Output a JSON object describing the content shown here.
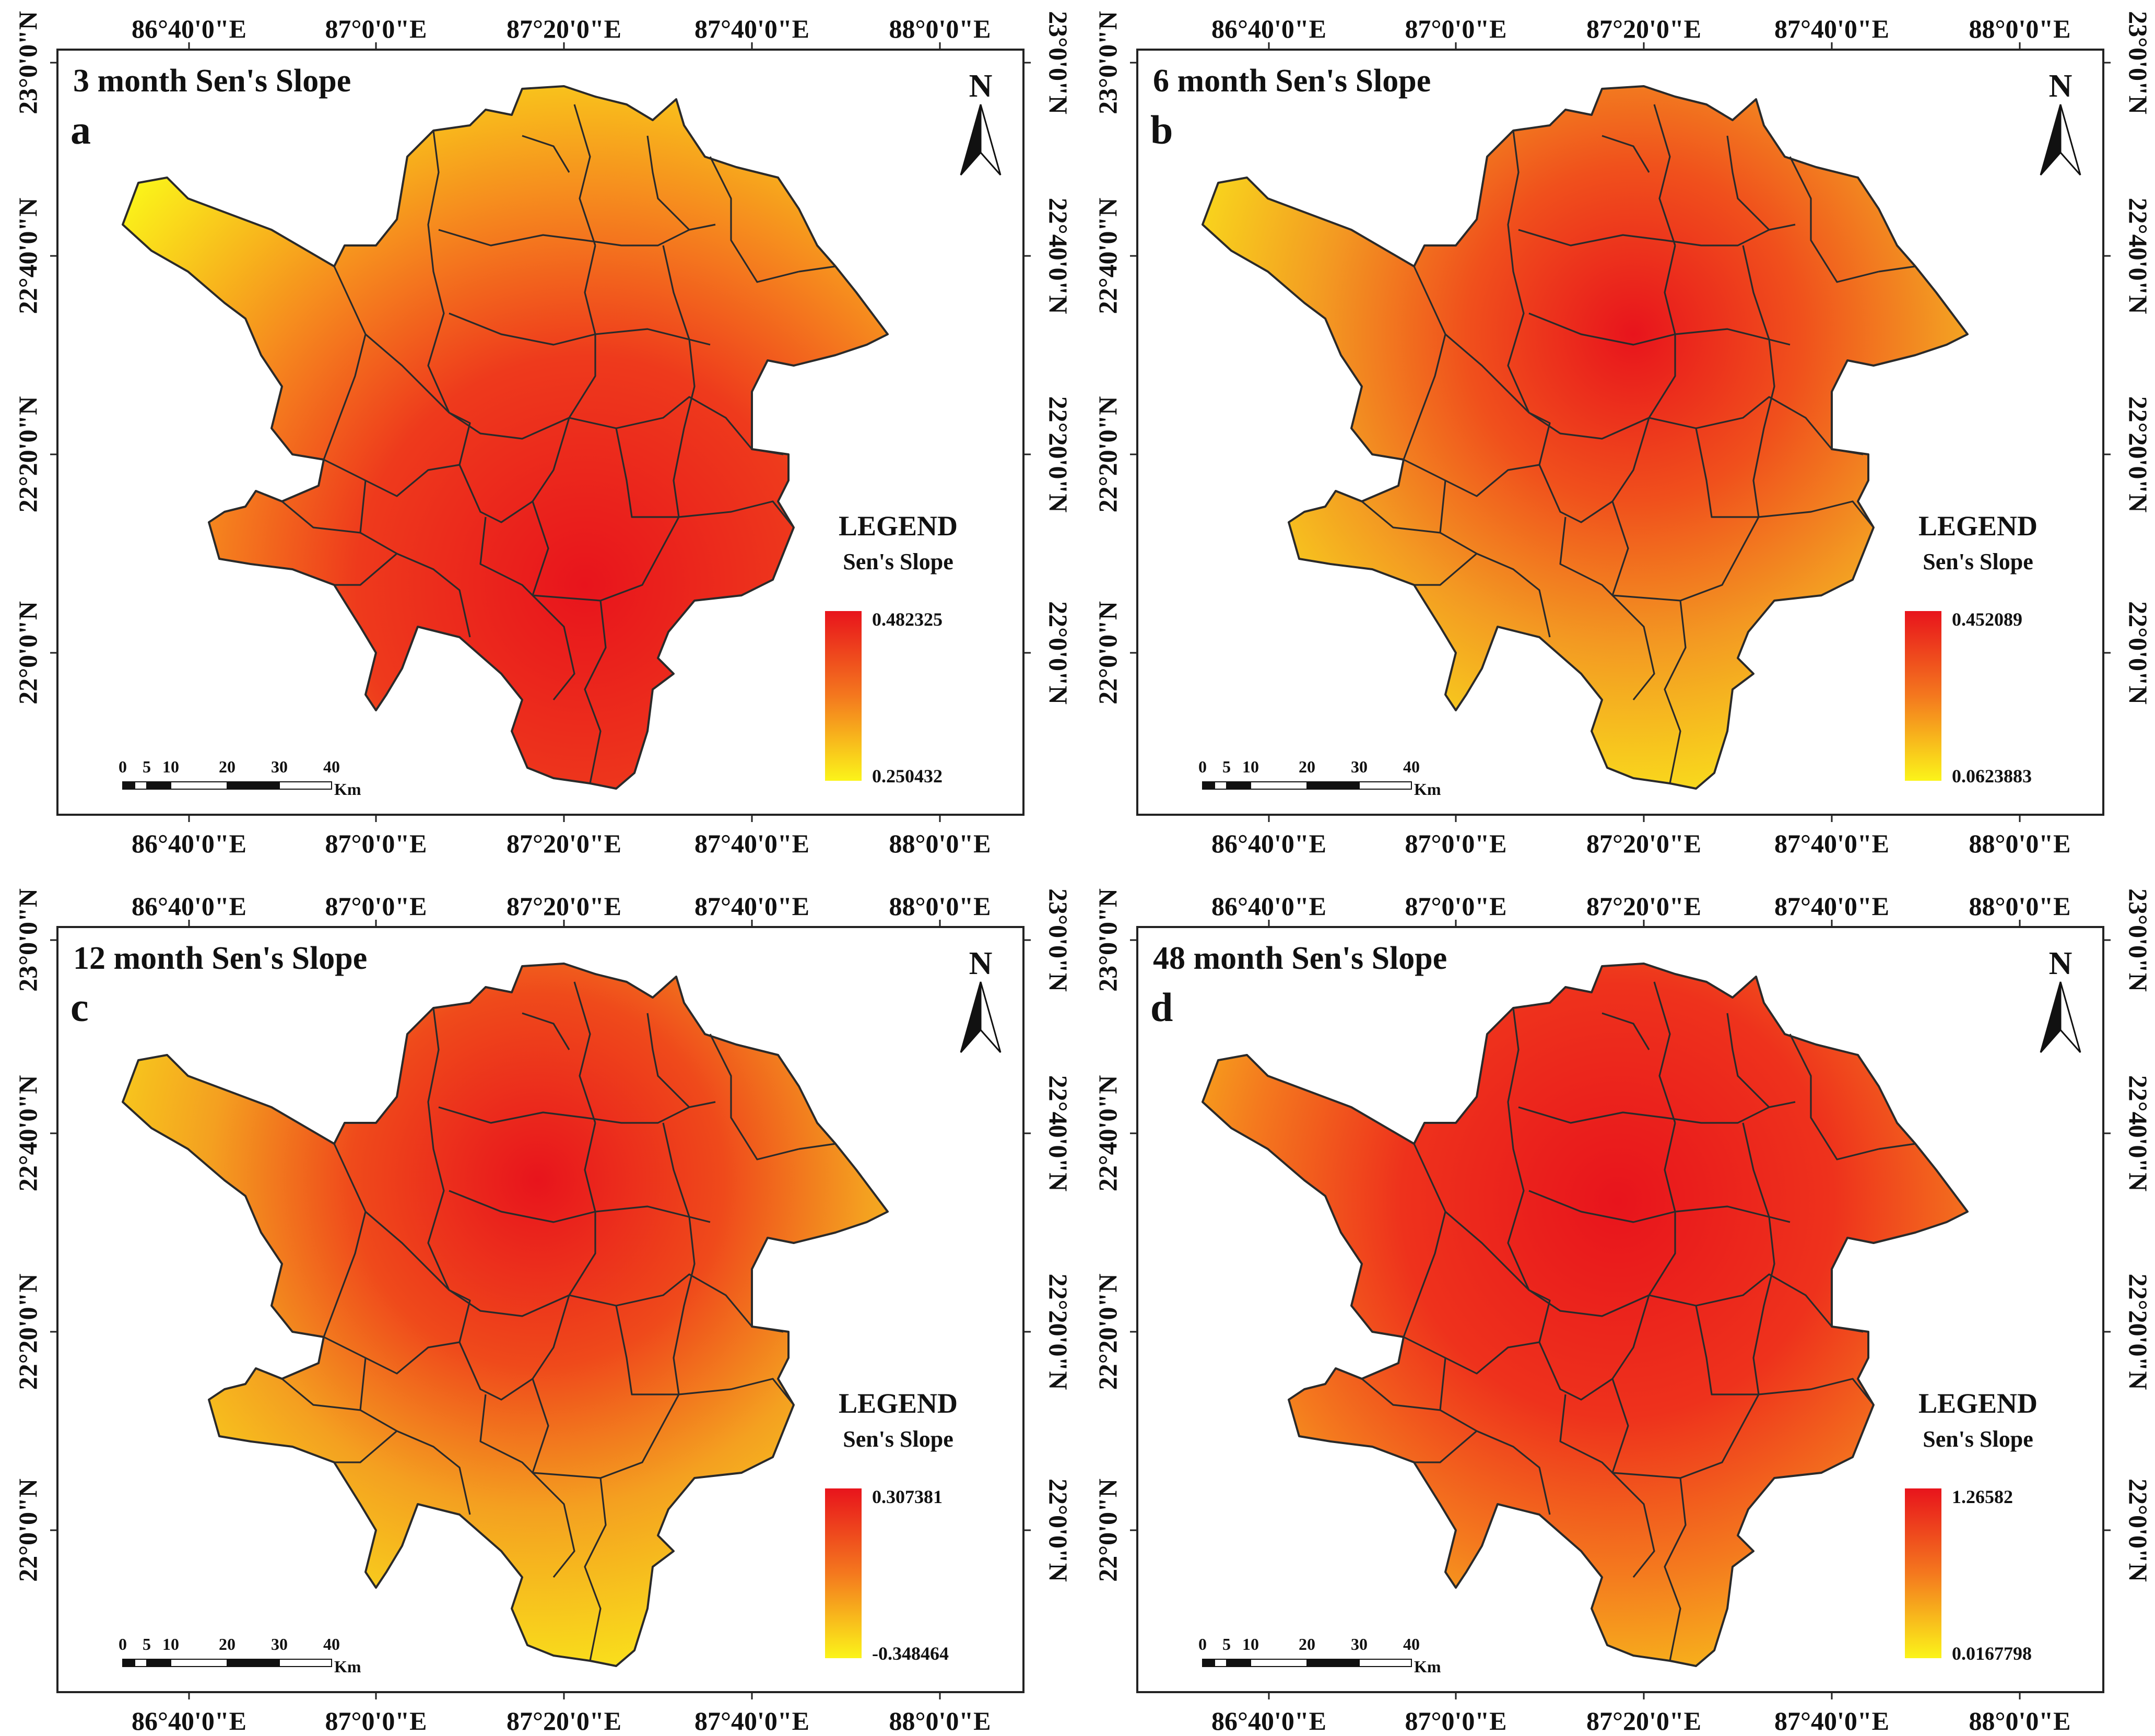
{
  "panels": [
    {
      "title": "3 month Sen's Slope",
      "letter": "a",
      "legend": {
        "heading": "LEGEND",
        "subheading": "Sen's Slope",
        "max_label": "0.482325",
        "min_label": "0.250432"
      }
    },
    {
      "title": "6 month Sen's Slope",
      "letter": "b",
      "legend": {
        "heading": "LEGEND",
        "subheading": "Sen's Slope",
        "max_label": "0.452089",
        "min_label": "0.0623883"
      }
    },
    {
      "title": "12 month Sen's Slope",
      "letter": "c",
      "legend": {
        "heading": "LEGEND",
        "subheading": "Sen's Slope",
        "max_label": "0.307381",
        "min_label": "-0.348464"
      }
    },
    {
      "title": "48 month Sen's Slope",
      "letter": "d",
      "legend": {
        "heading": "LEGEND",
        "subheading": "Sen's Slope",
        "max_label": "1.26582",
        "min_label": "0.0167798"
      }
    }
  ],
  "grid": {
    "longitude_labels": [
      "86°40'0\"E",
      "87°0'0\"E",
      "87°20'0\"E",
      "87°40'0\"E",
      "88°0'0\"E"
    ],
    "latitude_labels": [
      "23°0'0\"N",
      "22°40'0\"N",
      "22°20'0\"N",
      "22°0'0\"N"
    ]
  },
  "north_arrow": "N",
  "scale_bar": {
    "ticks": [
      "0",
      "5",
      "10",
      "20",
      "30",
      "40"
    ],
    "unit": "Km"
  },
  "colors": {
    "high": "#e8141c",
    "mid": "#f5821e",
    "low": "#fbf41a"
  }
}
